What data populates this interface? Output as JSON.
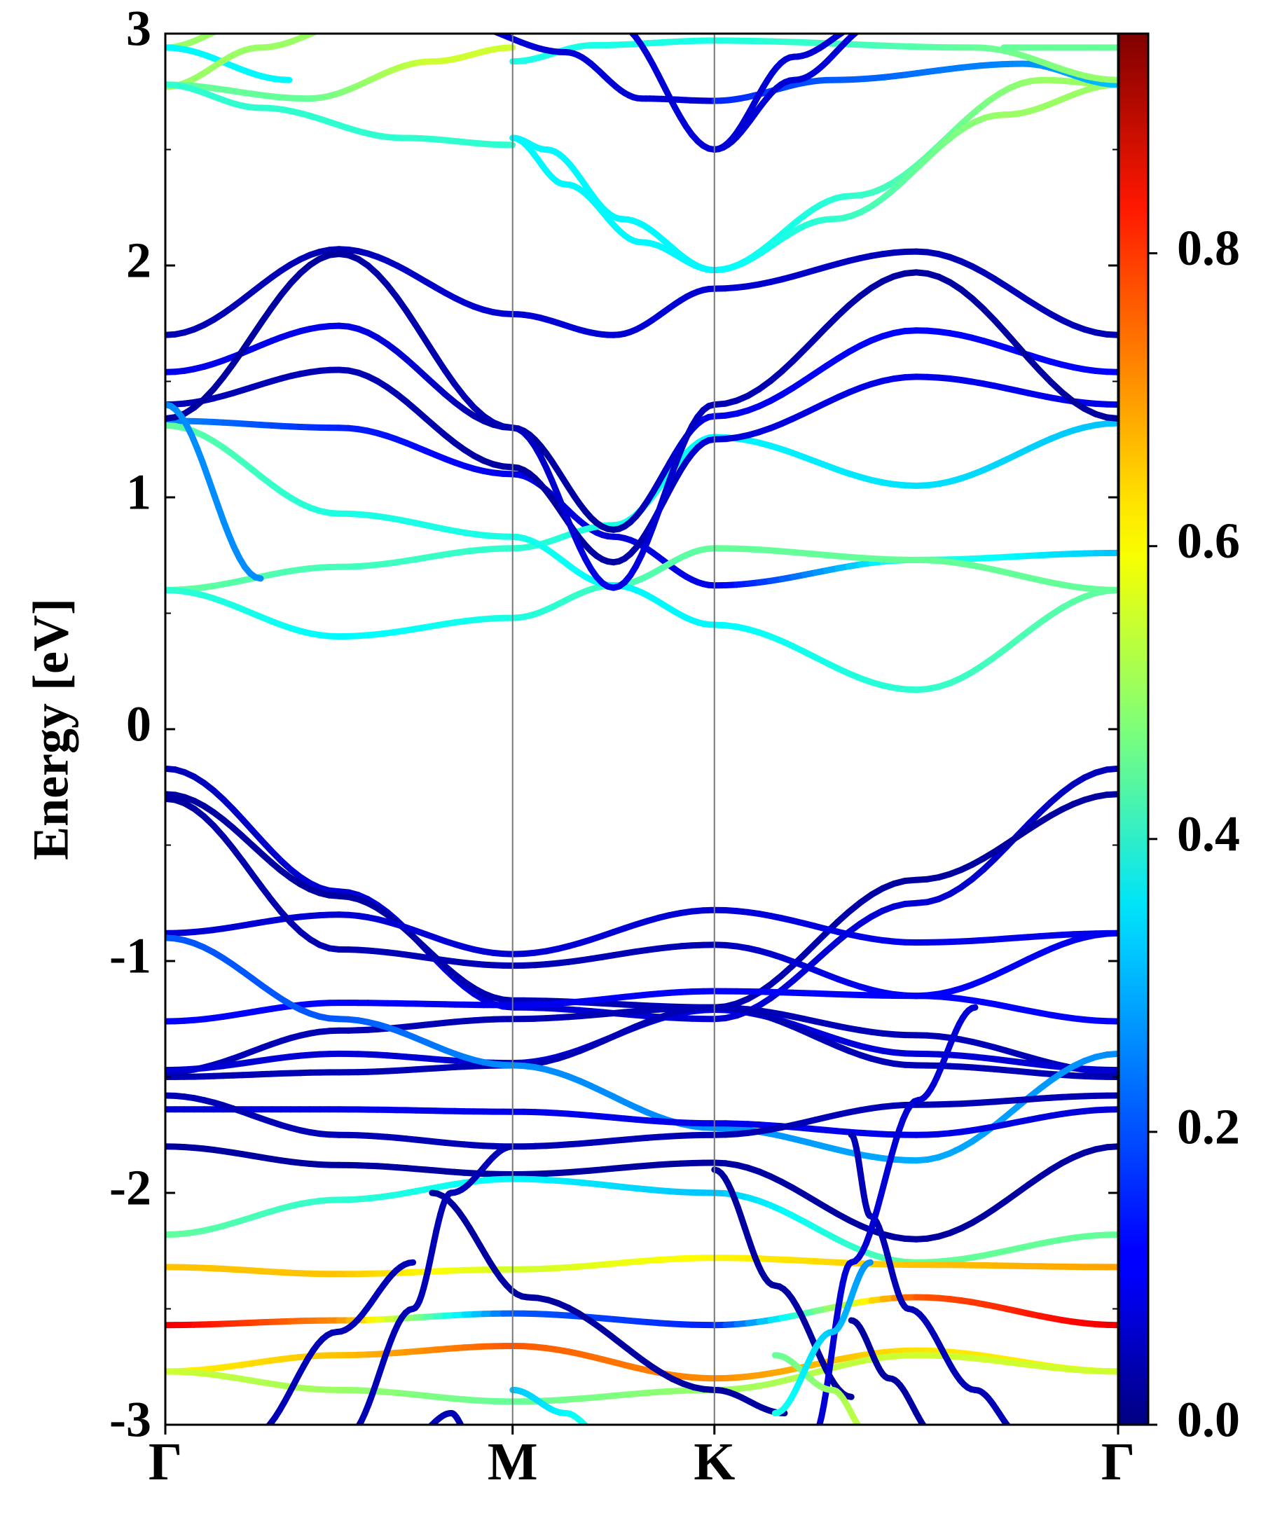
{
  "chart_data": {
    "type": "line",
    "title": "",
    "xlabel": "",
    "ylabel": "Energy [eV]",
    "ylim": [
      -3,
      3
    ],
    "yticks": [
      3,
      2,
      1,
      0,
      -1,
      -2,
      -3
    ],
    "ytick_labels": [
      "3",
      "2",
      "1",
      "0",
      "-1",
      "-2",
      "-3"
    ],
    "kpath": {
      "labels": [
        "Γ",
        "M",
        "K",
        "Γ"
      ],
      "positions": [
        0,
        0.3645,
        0.5763,
        1.0
      ]
    },
    "colorbar": {
      "range": [
        0.0,
        0.95
      ],
      "ticks": [
        0.0,
        0.2,
        0.4,
        0.6,
        0.8
      ],
      "tick_labels": [
        "0.0",
        "0.2",
        "0.4",
        "0.6",
        "0.8"
      ],
      "colormap": "jet"
    },
    "series": [
      {
        "e": [
          1.33,
          1.3,
          1.1,
          0.83,
          0.62,
          0.73,
          0.76
        ],
        "w": [
          0.25,
          0.15,
          0.1,
          0.08,
          0.1,
          0.4,
          0.3
        ]
      },
      {
        "e": [
          0.6,
          0.7,
          0.78,
          0.88,
          1.26,
          1.05,
          1.32
        ],
        "w": [
          0.45,
          0.42,
          0.4,
          0.38,
          0.35,
          0.33,
          0.3
        ]
      },
      {
        "e": [
          0.6,
          0.4,
          0.48,
          0.62,
          0.78,
          0.73,
          0.6
        ],
        "w": [
          0.4,
          0.35,
          0.38,
          0.42,
          0.45,
          0.45,
          0.45
        ]
      },
      {
        "e": [
          1.31,
          0.93,
          0.83,
          0.62,
          0.45,
          0.17,
          0.6
        ],
        "w": [
          0.45,
          0.38,
          0.38,
          0.35,
          0.35,
          0.4,
          0.45
        ]
      },
      {
        "e": [
          1.7,
          2.07,
          1.79,
          1.7,
          1.9,
          2.06,
          1.7
        ],
        "w": [
          0.05,
          0.05,
          0.08,
          0.08,
          0.08,
          0.05,
          0.05
        ]
      },
      {
        "e": [
          1.54,
          1.74,
          1.3,
          0.86,
          1.35,
          1.72,
          1.54
        ],
        "w": [
          0.1,
          0.1,
          0.03,
          0.03,
          0.1,
          0.12,
          0.12
        ]
      },
      {
        "e": [
          1.4,
          1.55,
          1.13,
          0.72,
          1.25,
          1.52,
          1.4
        ],
        "w": [
          0.05,
          0.05,
          0.03,
          0.03,
          0.08,
          0.1,
          0.1
        ]
      },
      {
        "e": [
          1.34,
          2.05,
          1.3,
          0.61,
          1.4,
          1.97,
          1.34
        ],
        "w": [
          0.03,
          0.03,
          0.05,
          0.1,
          0.05,
          0.03,
          0.03
        ]
      },
      {
        "e": [
          -0.17,
          -0.7,
          -1.2,
          -1.25,
          -0.75,
          -0.17
        ],
        "w": [
          0.05,
          0.08,
          0.08,
          0.08,
          0.08,
          0.05
        ]
      },
      {
        "e": [
          -0.28,
          -0.72,
          -1.17,
          -1.2,
          -0.65,
          -0.28
        ],
        "w": [
          0.03,
          0.03,
          0.05,
          0.05,
          0.03,
          0.03
        ]
      },
      {
        "e": [
          -0.88,
          -0.8,
          -0.97,
          -0.78,
          -0.92,
          -0.88
        ],
        "w": [
          0.08,
          0.08,
          0.08,
          0.08,
          0.1,
          0.1
        ]
      },
      {
        "e": [
          -0.3,
          -0.95,
          -1.02,
          -0.93,
          -1.15,
          -0.88
        ],
        "w": [
          0.03,
          0.05,
          0.05,
          0.05,
          0.12,
          0.1
        ]
      },
      {
        "e": [
          -1.26,
          -1.18,
          -1.19,
          -1.13,
          -1.15,
          -1.26
        ],
        "w": [
          0.12,
          0.12,
          0.1,
          0.12,
          0.12,
          0.12
        ]
      },
      {
        "e": [
          -1.48,
          -1.3,
          -1.25,
          -1.2,
          -1.32,
          -1.48
        ],
        "w": [
          0.05,
          0.05,
          0.05,
          0.05,
          0.05,
          0.05
        ]
      },
      {
        "e": [
          -1.47,
          -1.4,
          -1.44,
          -1.21,
          -1.4,
          -1.47
        ],
        "w": [
          0.08,
          0.08,
          0.08,
          0.1,
          0.08,
          0.08
        ]
      },
      {
        "e": [
          -1.5,
          -1.48,
          -1.45,
          -1.2,
          -1.45,
          -1.5
        ],
        "w": [
          0.05,
          0.05,
          0.05,
          0.05,
          0.05,
          0.05
        ]
      },
      {
        "e": [
          -0.9,
          -1.25,
          -1.45,
          -1.72,
          -1.86,
          -1.4
        ],
        "w": [
          0.2,
          0.2,
          0.25,
          0.25,
          0.28,
          0.25
        ]
      },
      {
        "e": [
          -1.64,
          -1.64,
          -1.65,
          -1.7,
          -1.75,
          -1.64
        ],
        "w": [
          0.08,
          0.1,
          0.1,
          0.1,
          0.1,
          0.08
        ]
      },
      {
        "e": [
          -1.58,
          -1.75,
          -1.8,
          -1.75,
          -1.62,
          -1.58
        ],
        "w": [
          0.05,
          0.05,
          0.05,
          0.05,
          0.05,
          0.05
        ]
      },
      {
        "e": [
          -1.8,
          -1.88,
          -1.92,
          -1.87,
          -2.2,
          -1.8
        ],
        "w": [
          0.03,
          0.03,
          0.03,
          0.03,
          0.03,
          0.03
        ]
      },
      {
        "e": [
          -2.18,
          -2.03,
          -1.94,
          -2.0,
          -2.3,
          -2.18
        ],
        "w": [
          0.45,
          0.4,
          0.35,
          0.3,
          0.45,
          0.45
        ]
      },
      {
        "e": [
          -2.32,
          -2.35,
          -2.33,
          -2.28,
          -2.31,
          -2.32
        ],
        "w": [
          0.65,
          0.65,
          0.55,
          0.6,
          0.65,
          0.68
        ]
      },
      {
        "e": [
          -2.57,
          -2.55,
          -2.52,
          -2.57,
          -2.45,
          -2.57
        ],
        "w": [
          0.85,
          0.7,
          0.2,
          0.15,
          0.75,
          0.85
        ]
      },
      {
        "e": [
          -2.77,
          -2.7,
          -2.66,
          -2.8,
          -2.68,
          -2.77
        ],
        "w": [
          0.6,
          0.65,
          0.75,
          0.7,
          0.62,
          0.6
        ]
      },
      {
        "e": [
          -2.77,
          -2.85,
          -2.9,
          -2.85,
          -2.7,
          -2.77
        ],
        "w": [
          0.55,
          0.5,
          0.45,
          0.5,
          0.55,
          0.55
        ]
      }
    ],
    "segments": [
      {
        "e": [
          1.4,
          0.65
        ],
        "w": [
          0.25,
          0.25
        ],
        "xs": [
          0.0,
          0.1
        ]
      },
      {
        "e": [
          2.94,
          3.05
        ],
        "w": [
          0.5,
          0.5
        ],
        "xs": [
          0.0,
          0.09
        ]
      },
      {
        "e": [
          2.94,
          2.8
        ],
        "w": [
          0.35,
          0.35
        ],
        "xs": [
          0.0,
          0.13
        ]
      },
      {
        "e": [
          2.77,
          2.94,
          3.05
        ],
        "w": [
          0.5,
          0.5,
          0.5
        ],
        "xs": [
          0.0,
          0.1,
          0.2
        ]
      },
      {
        "e": [
          2.78,
          2.72,
          2.88,
          2.94
        ],
        "w": [
          0.45,
          0.45,
          0.55,
          0.55
        ],
        "xs": [
          0.0,
          0.15,
          0.28,
          0.3645
        ]
      },
      {
        "e": [
          2.78,
          2.68,
          2.55,
          2.52
        ],
        "w": [
          0.4,
          0.4,
          0.4,
          0.4
        ],
        "xs": [
          0.0,
          0.1,
          0.25,
          0.3645
        ]
      },
      {
        "e": [
          2.88,
          2.95,
          2.97
        ],
        "w": [
          0.38,
          0.38,
          0.38
        ],
        "xs": [
          0.3645,
          0.45,
          0.5763
        ]
      },
      {
        "e": [
          2.55,
          2.5,
          2.2,
          1.98
        ],
        "w": [
          0.35,
          0.35,
          0.35,
          0.35
        ],
        "xs": [
          0.3645,
          0.4,
          0.48,
          0.5763
        ]
      },
      {
        "e": [
          2.55,
          2.35,
          2.1,
          1.98
        ],
        "w": [
          0.35,
          0.35,
          0.35,
          0.35
        ],
        "xs": [
          0.3645,
          0.42,
          0.5,
          0.5763
        ]
      },
      {
        "e": [
          3.05,
          2.92,
          2.72,
          2.71
        ],
        "w": [
          0.08,
          0.08,
          0.08,
          0.08
        ],
        "xs": [
          0.3,
          0.42,
          0.5,
          0.5763
        ]
      },
      {
        "e": [
          3.05,
          2.5
        ],
        "w": [
          0.08,
          0.08
        ],
        "xs": [
          0.47,
          0.5763
        ]
      },
      {
        "e": [
          1.98,
          2.3,
          2.8,
          2.78
        ],
        "w": [
          0.35,
          0.4,
          0.5,
          0.5
        ],
        "xs": [
          0.5763,
          0.72,
          0.92,
          1.0
        ]
      },
      {
        "e": [
          1.98,
          2.2,
          2.65,
          2.78
        ],
        "w": [
          0.35,
          0.4,
          0.5,
          0.5
        ],
        "xs": [
          0.5763,
          0.7,
          0.88,
          1.0
        ]
      },
      {
        "e": [
          2.71,
          2.8,
          2.87,
          2.78
        ],
        "w": [
          0.15,
          0.2,
          0.25,
          0.3
        ],
        "xs": [
          0.5763,
          0.7,
          0.9,
          1.0
        ]
      },
      {
        "e": [
          2.97,
          2.94,
          2.8
        ],
        "w": [
          0.38,
          0.45,
          0.5
        ],
        "xs": [
          0.5763,
          0.85,
          1.0
        ]
      },
      {
        "e": [
          2.94,
          2.94
        ],
        "w": [
          0.45,
          0.45
        ],
        "xs": [
          0.88,
          1.0
        ]
      },
      {
        "e": [
          2.5,
          2.9,
          3.05
        ],
        "w": [
          0.08,
          0.08,
          0.08
        ],
        "xs": [
          0.5763,
          0.66,
          0.74
        ]
      },
      {
        "e": [
          2.5,
          2.8,
          3.05
        ],
        "w": [
          0.08,
          0.08,
          0.08
        ],
        "xs": [
          0.5763,
          0.66,
          0.75
        ]
      },
      {
        "e": [
          -2.0,
          -2.45,
          -2.85,
          -2.95
        ],
        "w": [
          0.03,
          0.03,
          0.03,
          0.03
        ],
        "xs": [
          0.28,
          0.38,
          0.5763,
          0.65
        ]
      },
      {
        "e": [
          -3.05,
          -2.6,
          -2.3
        ],
        "w": [
          0.05,
          0.05,
          0.05
        ],
        "xs": [
          0.09,
          0.18,
          0.26
        ]
      },
      {
        "e": [
          -3.05,
          -2.5,
          -2.0,
          -1.8
        ],
        "w": [
          0.05,
          0.05,
          0.05,
          0.05
        ],
        "xs": [
          0.19,
          0.26,
          0.3,
          0.3645
        ]
      },
      {
        "e": [
          -1.9,
          -2.4,
          -2.88
        ],
        "w": [
          0.03,
          0.03,
          0.03
        ],
        "xs": [
          0.5763,
          0.64,
          0.72
        ]
      },
      {
        "e": [
          -1.75,
          -2.1,
          -2.5,
          -2.85,
          -3.05
        ],
        "w": [
          0.05,
          0.05,
          0.05,
          0.05,
          0.05
        ],
        "xs": [
          0.72,
          0.74,
          0.78,
          0.85,
          0.9
        ]
      },
      {
        "e": [
          -1.2,
          -1.6,
          -2.3,
          -3.05
        ],
        "w": [
          0.08,
          0.08,
          0.08,
          0.08
        ],
        "xs": [
          0.85,
          0.79,
          0.72,
          0.68
        ]
      },
      {
        "e": [
          -2.55,
          -2.8,
          -3.05
        ],
        "w": [
          0.03,
          0.03,
          0.03
        ],
        "xs": [
          0.72,
          0.76,
          0.81
        ]
      },
      {
        "e": [
          -2.7,
          -2.85,
          -3.05
        ],
        "w": [
          0.45,
          0.5,
          0.55
        ],
        "xs": [
          0.64,
          0.7,
          0.74
        ]
      },
      {
        "e": [
          -2.3,
          -2.6,
          -2.95
        ],
        "w": [
          0.25,
          0.3,
          0.38
        ],
        "xs": [
          0.74,
          0.7,
          0.64
        ]
      },
      {
        "e": [
          -2.85,
          -2.95,
          -3.05
        ],
        "w": [
          0.3,
          0.35,
          0.4
        ],
        "xs": [
          0.3645,
          0.42,
          0.46
        ]
      },
      {
        "e": [
          -3.05,
          -2.95,
          -3.05
        ],
        "w": [
          0.05,
          0.05,
          0.05
        ],
        "xs": [
          0.26,
          0.3,
          0.32
        ]
      }
    ]
  }
}
